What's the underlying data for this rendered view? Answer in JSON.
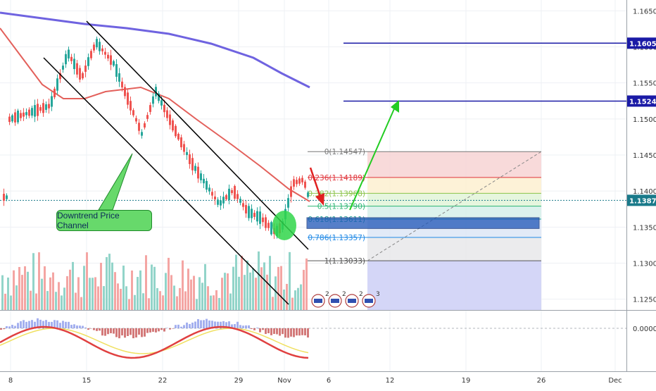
{
  "chart_data": {
    "type": "candlestick",
    "instrument": "EUR/USD",
    "x_tick_labels": [
      "8",
      "15",
      "22",
      "29",
      "Nov",
      "6",
      "12",
      "19",
      "26",
      "Dec"
    ],
    "y_tick_labels": [
      "1.16500",
      "1.16000",
      "1.15500",
      "1.15000",
      "1.14500",
      "1.14000",
      "1.13500",
      "1.13000",
      "1.12500"
    ],
    "oscillator_tick_label": "0.0000",
    "ylim": [
      1.1235,
      1.1665
    ],
    "current_price": "1.13871",
    "price_tags": [
      {
        "label": "1.16051",
        "value": 1.16051,
        "color": "#1a1aa6"
      },
      {
        "label": "1.15248",
        "value": 1.15248,
        "color": "#1a1aa6"
      },
      {
        "label": "1.13871",
        "value": 1.13871,
        "color": "#1a7a8a"
      }
    ],
    "horizontal_levels": [
      1.16051,
      1.15248
    ],
    "fibonacci": [
      {
        "label": "0(1.14547)",
        "value": 1.14547,
        "color": "#777777"
      },
      {
        "label": "0.236(1.14189)",
        "value": 1.14189,
        "color": "#e0353b"
      },
      {
        "label": "0.382(1.13968)",
        "value": 1.13968,
        "color": "#8bc34a"
      },
      {
        "label": "0.5(1.13790)",
        "value": 1.1379,
        "color": "#2bb673"
      },
      {
        "label": "0.618(1.13611)",
        "value": 1.13611,
        "color": "#26a69a"
      },
      {
        "label": "0.786(1.13357)",
        "value": 1.13357,
        "color": "#1e88e5"
      },
      {
        "label": "1(1.13033)",
        "value": 1.13033,
        "color": "#555555"
      }
    ],
    "annotation": "Downtrend Price Channel",
    "event_badges": [
      "2",
      "2",
      "2",
      "3"
    ],
    "colors": {
      "up": "#26a69a",
      "down": "#ef5350",
      "ma_fast": "#e3605b",
      "ma_slow": "#6f63e0",
      "channel": "#000000",
      "zone": "#1e55b8",
      "arrow_up": "#22cc22",
      "arrow_down": "#e02020"
    }
  }
}
